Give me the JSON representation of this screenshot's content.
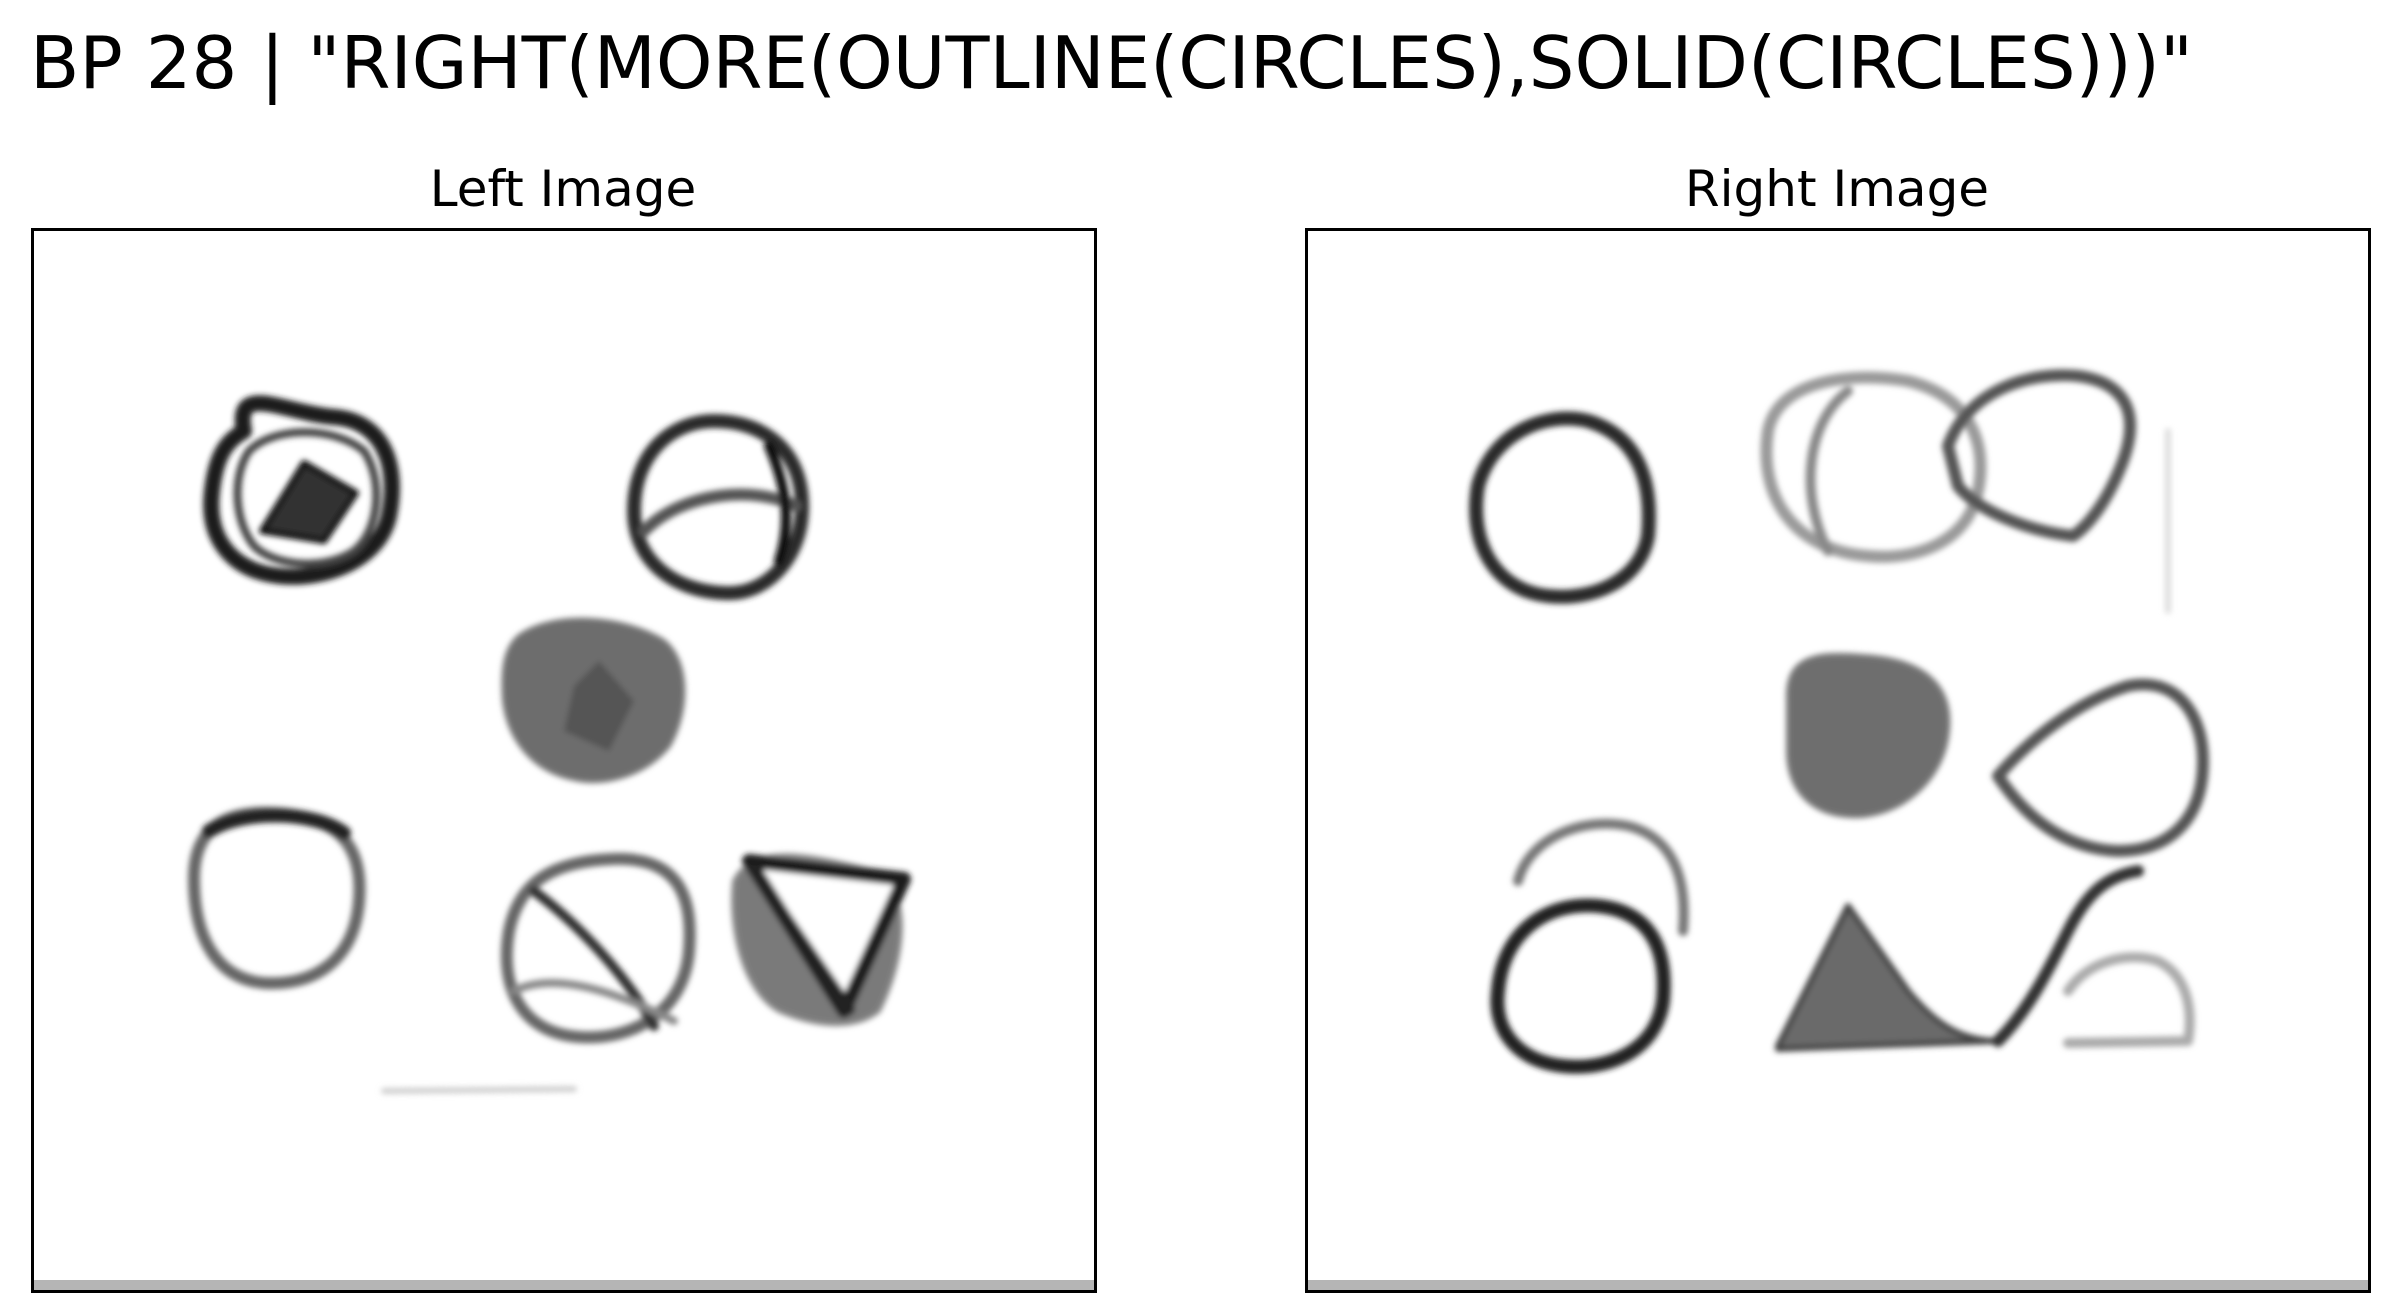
{
  "figure": {
    "suptitle": "BP 28 | \"RIGHT(MORE(OUTLINE(CIRCLES),SOLID(CIRCLES)))\"",
    "panels": [
      {
        "title": "Left Image"
      },
      {
        "title": "Right Image"
      }
    ]
  },
  "palette": {
    "dark": "#222222",
    "mid": "#555555",
    "light": "#999999",
    "fill": "#6e6e6e",
    "frame": "#000000"
  }
}
